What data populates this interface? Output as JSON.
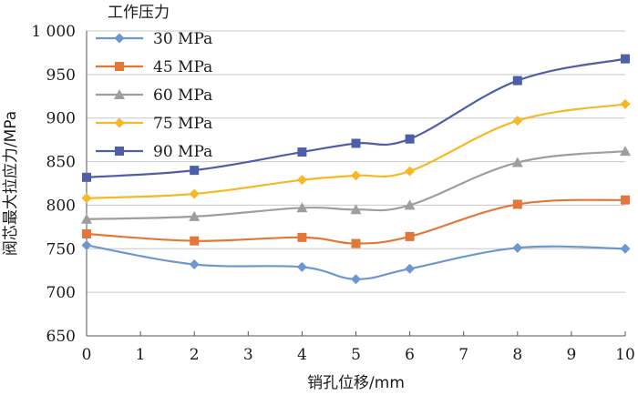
{
  "chart_data": {
    "type": "line",
    "smooth": true,
    "x": [
      0,
      2,
      4,
      5,
      6,
      8,
      10
    ],
    "xticks": [
      "0",
      "1",
      "2",
      "3",
      "4",
      "5",
      "6",
      "7",
      "8",
      "9",
      "10"
    ],
    "xlim": [
      0,
      10
    ],
    "ylim": [
      650,
      1000
    ],
    "yticks": [
      "650",
      "700",
      "750",
      "800",
      "850",
      "900",
      "950",
      "1 000"
    ],
    "xlabel": "销孔位移/mm",
    "ylabel": "阀芯最大拉应力/MPa",
    "legend_title": "工作压力",
    "legend_position": "top-left",
    "grid": "horizontal",
    "series": [
      {
        "name": "30 MPa",
        "color": "#6f97cf",
        "marker": "diamond",
        "values": [
          754,
          732,
          729,
          715,
          727,
          751,
          750
        ]
      },
      {
        "name": "45 MPa",
        "color": "#e2773a",
        "marker": "square",
        "values": [
          767,
          759,
          763,
          756,
          764,
          801,
          806
        ]
      },
      {
        "name": "60 MPa",
        "color": "#a09d9b",
        "marker": "triangle",
        "values": [
          784,
          787,
          797,
          795,
          800,
          849,
          862
        ]
      },
      {
        "name": "75 MPa",
        "color": "#f7b827",
        "marker": "diamond",
        "values": [
          808,
          813,
          829,
          834,
          839,
          897,
          916
        ]
      },
      {
        "name": "90 MPa",
        "color": "#4e5ea8",
        "marker": "square",
        "values": [
          832,
          840,
          861,
          871,
          876,
          943,
          968
        ]
      }
    ]
  }
}
